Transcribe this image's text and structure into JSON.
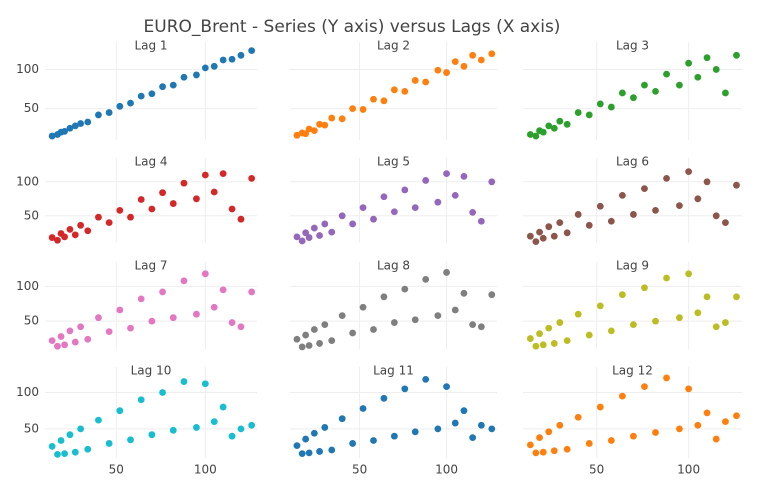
{
  "chart_data": {
    "type": "scatter",
    "title": "EURO_Brent - Series (Y axis) versus Lags (X axis)",
    "xlim": [
      10,
      129
    ],
    "ylim": [
      10,
      135
    ],
    "xticks": [
      50,
      100
    ],
    "yticks": [
      50,
      100
    ],
    "grid": true,
    "x": [
      14,
      17,
      19,
      21,
      24,
      27,
      30,
      34,
      40,
      46,
      52,
      58,
      64,
      70,
      76,
      82,
      88,
      95,
      100,
      105,
      110,
      115,
      120,
      126
    ],
    "series": [
      {
        "name": "Lag 1",
        "color": "#1f77b4",
        "values": [
          15,
          17,
          20,
          21,
          25,
          28,
          31,
          33,
          42,
          45,
          53,
          57,
          66,
          69,
          78,
          80,
          90,
          93,
          102,
          104,
          112,
          113,
          118,
          124
        ]
      },
      {
        "name": "Lag 2",
        "color": "#ff7f0e",
        "values": [
          16,
          19,
          18,
          24,
          22,
          30,
          29,
          38,
          37,
          50,
          49,
          62,
          60,
          74,
          72,
          86,
          84,
          99,
          96,
          110,
          104,
          118,
          112,
          120
        ]
      },
      {
        "name": "Lag 3",
        "color": "#2ca02c",
        "values": [
          17,
          15,
          22,
          20,
          28,
          25,
          34,
          30,
          45,
          42,
          56,
          52,
          70,
          64,
          80,
          72,
          94,
          80,
          108,
          90,
          115,
          100,
          70,
          118
        ]
      },
      {
        "name": "Lag 4",
        "color": "#d62728",
        "values": [
          18,
          14,
          24,
          19,
          30,
          22,
          36,
          28,
          48,
          40,
          58,
          48,
          74,
          60,
          84,
          68,
          98,
          75,
          110,
          85,
          112,
          60,
          45,
          105
        ]
      },
      {
        "name": "Lag 5",
        "color": "#9467bd",
        "values": [
          19,
          13,
          25,
          18,
          32,
          21,
          38,
          26,
          50,
          38,
          62,
          45,
          78,
          56,
          88,
          62,
          102,
          70,
          112,
          80,
          108,
          55,
          42,
          100
        ]
      },
      {
        "name": "Lag 6",
        "color": "#8c564b",
        "values": [
          20,
          12,
          26,
          17,
          34,
          20,
          40,
          25,
          52,
          36,
          64,
          42,
          80,
          52,
          90,
          58,
          105,
          65,
          115,
          75,
          100,
          50,
          40,
          95
        ]
      },
      {
        "name": "Lag 7",
        "color": "#e377c2",
        "values": [
          22,
          14,
          28,
          16,
          36,
          20,
          42,
          24,
          55,
          35,
          66,
          40,
          82,
          50,
          92,
          55,
          108,
          60,
          118,
          70,
          95,
          48,
          42,
          92
        ]
      },
      {
        "name": "Lag 8",
        "color": "#7f7f7f",
        "values": [
          24,
          13,
          30,
          15,
          38,
          18,
          45,
          22,
          58,
          33,
          70,
          38,
          85,
          48,
          96,
          52,
          110,
          58,
          120,
          66,
          90,
          45,
          42,
          88
        ]
      },
      {
        "name": "Lag 9",
        "color": "#bcbd22",
        "values": [
          25,
          14,
          32,
          16,
          40,
          18,
          48,
          22,
          60,
          30,
          72,
          36,
          88,
          45,
          98,
          50,
          112,
          55,
          118,
          62,
          85,
          42,
          48,
          85
        ]
      },
      {
        "name": "Lag 10",
        "color": "#17becf",
        "values": [
          26,
          15,
          34,
          16,
          42,
          18,
          50,
          22,
          62,
          30,
          75,
          35,
          90,
          42,
          100,
          48,
          115,
          52,
          112,
          60,
          80,
          40,
          50,
          55
        ]
      },
      {
        "name": "Lag 11",
        "color": "#1f77b4",
        "values": [
          27,
          16,
          36,
          17,
          44,
          19,
          52,
          21,
          64,
          30,
          78,
          34,
          92,
          40,
          105,
          46,
          118,
          50,
          108,
          58,
          75,
          38,
          55,
          50
        ]
      },
      {
        "name": "Lag 12",
        "color": "#ff7f0e",
        "values": [
          28,
          17,
          38,
          18,
          46,
          20,
          55,
          22,
          66,
          30,
          80,
          34,
          95,
          40,
          108,
          45,
          120,
          50,
          105,
          55,
          72,
          36,
          60,
          68
        ]
      }
    ]
  }
}
